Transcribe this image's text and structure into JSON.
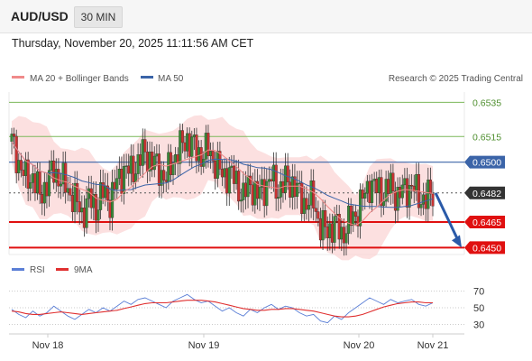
{
  "header": {
    "pair": "AUD/USD",
    "timeframe": "30 MIN"
  },
  "timestamp": "Thursday, November 20, 2025 11:11:56 AM CET",
  "legend": {
    "ma20": "MA 20 + Bollinger Bands",
    "ma50": "MA 50",
    "ma20_color": "#f08a8a",
    "ma50_color": "#3b64a8"
  },
  "watermark": "Research © 2025 Trading Central",
  "rsi_legend": {
    "rsi": "RSI",
    "nine_ma": "9MA",
    "rsi_color": "#5b7fd6",
    "nine_ma_color": "#e03030"
  },
  "colors": {
    "resistance": "#7cb85a",
    "pivot": "#3b64a8",
    "support": "#e01010",
    "arrow": "#2a5aa8",
    "up_candle": "#3a8a3a",
    "down_candle": "#c83232"
  },
  "chart_data": [
    {
      "type": "candlestick",
      "x_labels": [
        "Nov 18",
        "Nov 19",
        "Nov 20",
        "Nov 21"
      ],
      "ylim": [
        0.6446,
        0.6541
      ],
      "levels": [
        {
          "label": "0.6535",
          "value": 0.6535,
          "kind": "resistance"
        },
        {
          "label": "0.6515",
          "value": 0.6515,
          "kind": "resistance"
        },
        {
          "label": "0.6500",
          "value": 0.65,
          "kind": "pivot"
        },
        {
          "label": "0.6482",
          "value": 0.6482,
          "kind": "last"
        },
        {
          "label": "0.6465",
          "value": 0.6465,
          "kind": "support"
        },
        {
          "label": "0.6450",
          "value": 0.645,
          "kind": "support"
        }
      ],
      "close_path": [
        0.6512,
        0.65,
        0.649,
        0.6492,
        0.648,
        0.6488,
        0.6495,
        0.649,
        0.6484,
        0.6478,
        0.647,
        0.6478,
        0.6474,
        0.6482,
        0.6478,
        0.6488,
        0.6496,
        0.6494,
        0.65,
        0.6506,
        0.65,
        0.6496,
        0.649,
        0.6502,
        0.6508,
        0.6514,
        0.6508,
        0.6504,
        0.6507,
        0.65,
        0.6492,
        0.6494,
        0.6488,
        0.648,
        0.6488,
        0.648,
        0.6486,
        0.649,
        0.6484,
        0.6488,
        0.6488,
        0.648,
        0.6476,
        0.6478,
        0.6462,
        0.646,
        0.6464,
        0.6458,
        0.6464,
        0.647,
        0.6478,
        0.6488,
        0.6484,
        0.6482,
        0.6486,
        0.648,
        0.6484,
        0.6486,
        0.648,
        0.6478,
        0.6482
      ],
      "arrow": {
        "from": 0.6482,
        "to": 0.645
      }
    },
    {
      "type": "line",
      "name": "RSI",
      "ylim": [
        25,
        75
      ],
      "ticks": [
        "70",
        "50",
        "30"
      ],
      "rsi": [
        48,
        42,
        38,
        46,
        40,
        44,
        52,
        46,
        40,
        36,
        42,
        48,
        44,
        50,
        46,
        52,
        58,
        54,
        60,
        62,
        58,
        54,
        50,
        58,
        62,
        66,
        60,
        56,
        58,
        52,
        46,
        50,
        44,
        40,
        48,
        44,
        50,
        54,
        48,
        52,
        50,
        44,
        40,
        42,
        34,
        32,
        40,
        36,
        44,
        50,
        56,
        62,
        58,
        54,
        60,
        56,
        58,
        60,
        54,
        52,
        56
      ],
      "ma9": [
        46,
        45,
        43,
        42,
        42,
        43,
        44,
        45,
        44,
        43,
        42,
        43,
        44,
        45,
        46,
        47,
        49,
        51,
        53,
        55,
        56,
        56,
        56,
        57,
        58,
        59,
        59,
        59,
        58,
        57,
        55,
        53,
        51,
        49,
        48,
        47,
        47,
        48,
        48,
        49,
        49,
        48,
        47,
        46,
        44,
        42,
        40,
        39,
        39,
        40,
        42,
        45,
        48,
        51,
        53,
        55,
        56,
        57,
        57,
        56,
        56
      ]
    }
  ]
}
